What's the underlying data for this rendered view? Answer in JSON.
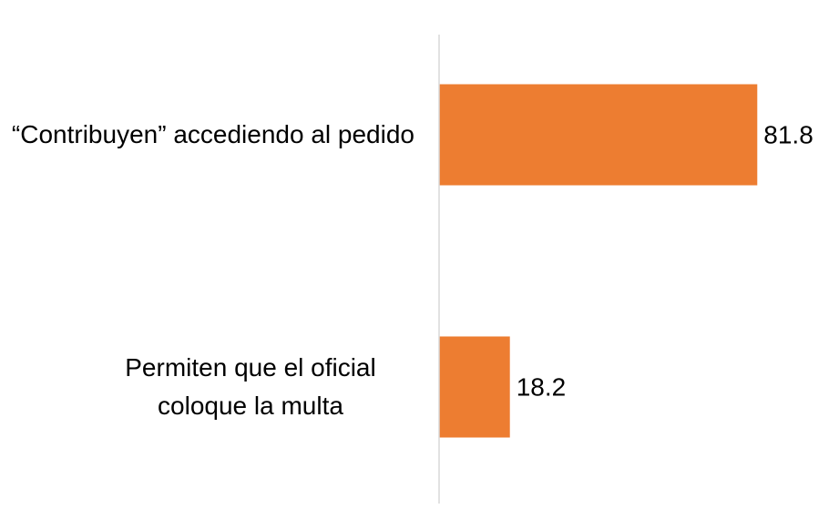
{
  "chart_data": {
    "type": "bar",
    "orientation": "horizontal",
    "categories": [
      "“Contribuyen” accediendo al pedido",
      "Permiten que el oficial coloque la multa"
    ],
    "values": [
      81.8,
      18.2
    ],
    "color": "#ed7d31",
    "xlim": [
      0,
      100
    ]
  }
}
